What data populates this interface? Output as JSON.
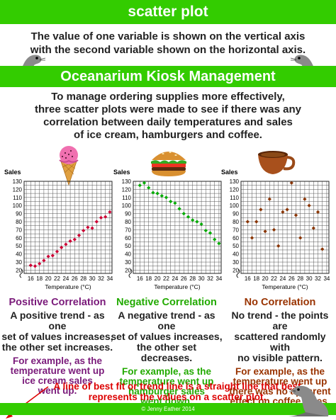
{
  "header": {
    "title": "scatter plot"
  },
  "definition": {
    "line1": "The value of one variable is shown on the vertical axis",
    "line2": "with the second variable shown on the horizontal axis."
  },
  "subheader": {
    "title": "Oceanarium Kiosk Management"
  },
  "intro": {
    "line1": "To manage ordering supplies more effectively,",
    "line2": "three scatter plots were made to see if there was any",
    "line3": "correlation between daily temperatures and sales",
    "line4": "of ice cream, hamburgers and coffee."
  },
  "colors": {
    "band": "#33cc00",
    "positive": "#cc0033",
    "negative": "#00aa00",
    "none": "#883300",
    "positive_heading": "#7a1a7a",
    "negative_heading": "#22aa00",
    "none_heading": "#993300",
    "best_fit": "#dd0000"
  },
  "icons": [
    "seal-icon",
    "ice-cream-icon",
    "hamburger-icon",
    "coffee-cup-icon",
    "arrow-icon"
  ],
  "chart_data": [
    {
      "type": "scatter",
      "title": "",
      "ylabel": "Sales",
      "xlabel": "Temperature (°C)",
      "x_ticks": [
        "16",
        "18",
        "20",
        "22",
        "24",
        "26",
        "28",
        "30",
        "32",
        "34"
      ],
      "y_ticks": [
        "20",
        "30",
        "40",
        "50",
        "60",
        "70",
        "80",
        "90",
        "100",
        "110",
        "120",
        "130"
      ],
      "xlim": [
        14.5,
        34.5
      ],
      "ylim": [
        16,
        130
      ],
      "color": "#cc0033",
      "marker": "diamond",
      "points": [
        [
          16,
          26
        ],
        [
          17,
          25
        ],
        [
          18,
          28
        ],
        [
          19,
          32
        ],
        [
          20,
          37
        ],
        [
          21,
          38
        ],
        [
          22,
          43
        ],
        [
          23,
          48
        ],
        [
          24,
          52
        ],
        [
          25,
          56
        ],
        [
          26,
          58
        ],
        [
          27,
          63
        ],
        [
          28,
          69
        ],
        [
          29,
          73
        ],
        [
          30,
          72
        ],
        [
          31,
          80
        ],
        [
          32,
          85
        ],
        [
          33,
          86
        ],
        [
          34,
          92
        ]
      ]
    },
    {
      "type": "scatter",
      "title": "",
      "ylabel": "Sales",
      "xlabel": "Temperature (°C)",
      "x_ticks": [
        "16",
        "18",
        "20",
        "22",
        "24",
        "26",
        "28",
        "30",
        "32",
        "34"
      ],
      "y_ticks": [
        "20",
        "30",
        "40",
        "50",
        "60",
        "70",
        "80",
        "90",
        "100",
        "110",
        "120",
        "130"
      ],
      "xlim": [
        14.5,
        34.5
      ],
      "ylim": [
        16,
        130
      ],
      "color": "#00aa00",
      "marker": "diamond",
      "points": [
        [
          16,
          125
        ],
        [
          17,
          128
        ],
        [
          18,
          122
        ],
        [
          19,
          116
        ],
        [
          20,
          115
        ],
        [
          21,
          112
        ],
        [
          22,
          110
        ],
        [
          23,
          105
        ],
        [
          24,
          103
        ],
        [
          25,
          96
        ],
        [
          26,
          90
        ],
        [
          27,
          86
        ],
        [
          28,
          82
        ],
        [
          29,
          80
        ],
        [
          30,
          77
        ],
        [
          31,
          69
        ],
        [
          32,
          66
        ],
        [
          33,
          58
        ],
        [
          34,
          53
        ]
      ]
    },
    {
      "type": "scatter",
      "title": "",
      "ylabel": "Sales",
      "xlabel": "Temperature (°C)",
      "x_ticks": [
        "16",
        "18",
        "20",
        "22",
        "24",
        "26",
        "28",
        "30",
        "32",
        "34"
      ],
      "y_ticks": [
        "20",
        "30",
        "40",
        "50",
        "60",
        "70",
        "80",
        "90",
        "100",
        "110",
        "120",
        "130"
      ],
      "xlim": [
        14.5,
        34.5
      ],
      "ylim": [
        16,
        130
      ],
      "color": "#883300",
      "marker": "diamond",
      "points": [
        [
          16,
          80
        ],
        [
          17,
          60
        ],
        [
          18,
          80
        ],
        [
          19,
          95
        ],
        [
          20,
          68
        ],
        [
          21,
          108
        ],
        [
          22,
          70
        ],
        [
          23,
          50
        ],
        [
          24,
          92
        ],
        [
          25,
          95
        ],
        [
          26,
          128
        ],
        [
          27,
          88
        ],
        [
          28,
          60
        ],
        [
          29,
          108
        ],
        [
          30,
          100
        ],
        [
          31,
          72
        ],
        [
          32,
          92
        ],
        [
          33,
          46
        ]
      ]
    }
  ],
  "columns": [
    {
      "heading": "Positive Correlation",
      "desc1": "A positive trend - as one",
      "desc2": "set of values increases,",
      "desc3": "the other set increases.",
      "ex1": "For example, as the",
      "ex2": "temperature went up",
      "ex3": "ice cream sales",
      "ex4": "went up."
    },
    {
      "heading": "Negative Correlation",
      "desc1": "A negative trend - as one",
      "desc2": "set of values increases,",
      "desc3": "the other set decreases.",
      "ex1": "For example, as the",
      "ex2": "temperature went up",
      "ex3": "hamburger sales",
      "ex4": "went down."
    },
    {
      "heading": "No Correlation",
      "desc1": "No trend - the points are",
      "desc2": "scattered randomly with",
      "desc3": "no visible pattern.",
      "ex1": "For example, as the",
      "ex2": "temperature went up",
      "ex3": "there was no apparent",
      "ex4": "effect on coffee sales."
    }
  ],
  "best_fit": {
    "line1": "A line of best fit or trend line is a straight line that best",
    "line2": "represents the values on a scatter plot."
  },
  "footer": {
    "copyright": "© Jenny Eather 2014"
  }
}
